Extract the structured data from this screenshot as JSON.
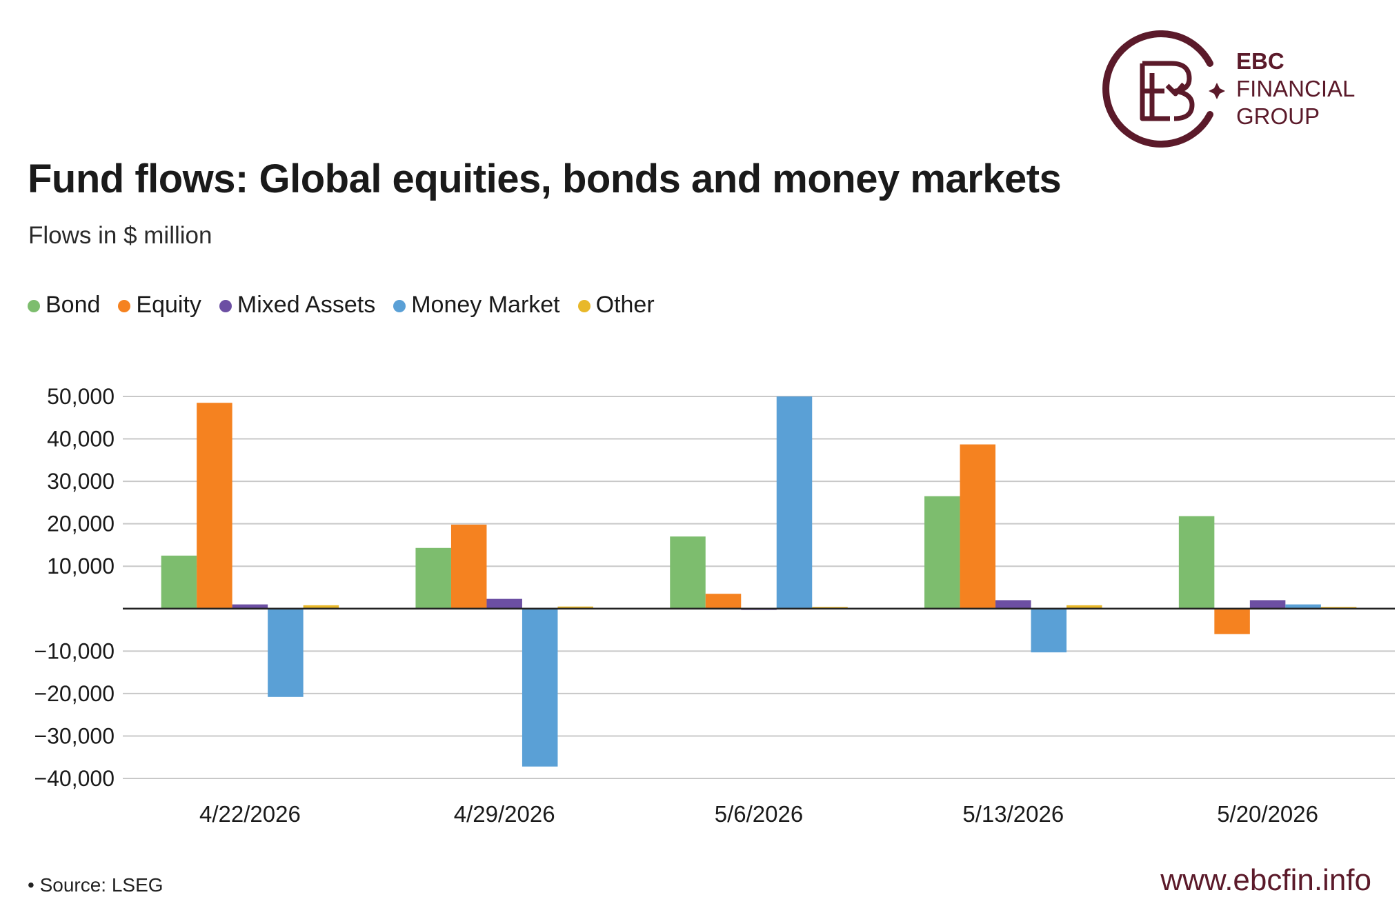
{
  "brand": {
    "name_line1": "EBC",
    "name_line2": "FINANCIAL",
    "name_line3": "GROUP",
    "color": "#5b1a2a",
    "website": "www.ebcfin.info"
  },
  "source_note": "• Source: LSEG",
  "chart_data": {
    "type": "bar",
    "title": "Fund flows: Global equities, bonds and money markets",
    "subtitle": "Flows in $ million",
    "legend_position": "top-left",
    "grid": true,
    "categories": [
      "4/22/2026",
      "4/29/2026",
      "5/6/2026",
      "5/13/2026",
      "5/20/2026"
    ],
    "ylim": [
      -40000,
      50000
    ],
    "yticks": [
      50000,
      40000,
      30000,
      20000,
      10000,
      0,
      -10000,
      -20000,
      -30000,
      -40000
    ],
    "ytick_labels": [
      "50,000",
      "40,000",
      "30,000",
      "20,000",
      "10,000",
      "",
      "−10,000",
      "−20,000",
      "−30,000",
      "−40,000"
    ],
    "series": [
      {
        "name": "Bond",
        "color": "#7dbd6e",
        "values": [
          12500,
          14300,
          17000,
          26500,
          21800
        ]
      },
      {
        "name": "Equity",
        "color": "#f58220",
        "values": [
          48500,
          19800,
          3500,
          38700,
          -6000
        ]
      },
      {
        "name": "Mixed Assets",
        "color": "#6c4fa3",
        "values": [
          1000,
          2300,
          -300,
          2000,
          2000
        ]
      },
      {
        "name": "Money Market",
        "color": "#5aa0d6",
        "values": [
          -20800,
          -37200,
          50000,
          -10300,
          1000
        ]
      },
      {
        "name": "Other",
        "color": "#e8b82a",
        "values": [
          800,
          500,
          400,
          800,
          400
        ]
      }
    ]
  }
}
